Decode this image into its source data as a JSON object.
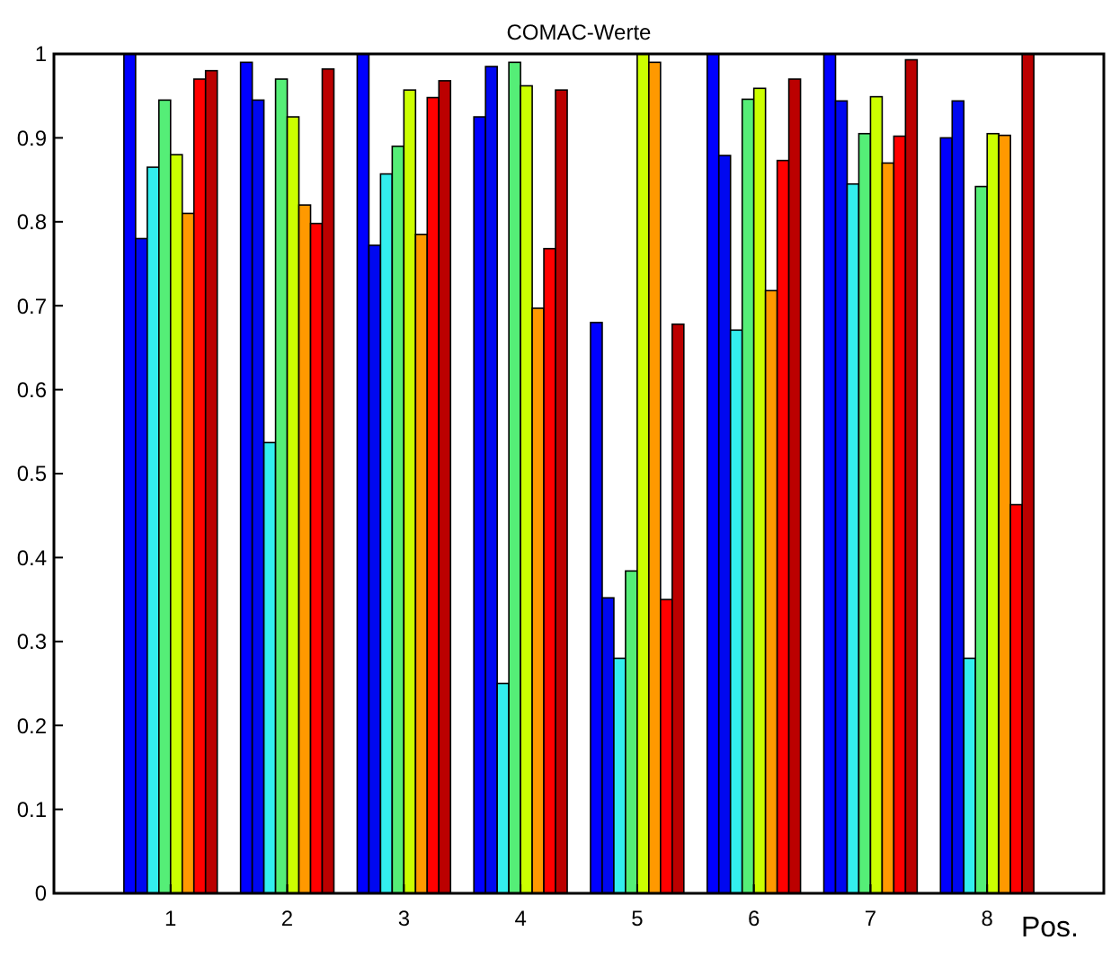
{
  "chart_data": {
    "type": "bar",
    "title": "COMAC-Werte",
    "xlabel": "Pos.",
    "categories": [
      "1",
      "2",
      "3",
      "4",
      "5",
      "6",
      "7",
      "8"
    ],
    "ylim": [
      0,
      1
    ],
    "yticks": [
      0,
      {
        "value": 0.1,
        "label": "0.1"
      },
      {
        "value": 0.2,
        "label": "0.2"
      },
      {
        "value": 0.3,
        "label": "0.3"
      },
      {
        "value": 0.4,
        "label": "0.4"
      },
      {
        "value": 0.5,
        "label": "0.5"
      },
      {
        "value": 0.6,
        "label": "0.6"
      },
      {
        "value": 0.7,
        "label": "0.7"
      },
      {
        "value": 0.8,
        "label": "0.8"
      },
      {
        "value": 0.9,
        "label": "0.9"
      },
      1
    ],
    "grid": false,
    "series": [
      {
        "color": "#0000ff",
        "values": [
          1.0,
          0.99,
          1.0,
          0.925,
          0.68,
          1.0,
          1.0,
          0.9
        ]
      },
      {
        "color": "#0008f0",
        "values": [
          0.78,
          0.945,
          0.772,
          0.985,
          0.352,
          0.879,
          0.944,
          0.944
        ]
      },
      {
        "color": "#33eeee",
        "values": [
          0.865,
          0.537,
          0.857,
          0.25,
          0.28,
          0.671,
          0.845,
          0.28
        ]
      },
      {
        "color": "#55ee77",
        "values": [
          0.945,
          0.97,
          0.89,
          0.99,
          0.384,
          0.946,
          0.905,
          0.842
        ]
      },
      {
        "color": "#ccff00",
        "values": [
          0.88,
          0.925,
          0.957,
          0.962,
          1.0,
          0.959,
          0.949,
          0.905
        ]
      },
      {
        "color": "#ff9900",
        "values": [
          0.81,
          0.82,
          0.785,
          0.697,
          0.99,
          0.718,
          0.87,
          0.903
        ]
      },
      {
        "color": "#ff0000",
        "values": [
          0.97,
          0.798,
          0.948,
          0.768,
          0.35,
          0.873,
          0.902,
          0.463
        ]
      },
      {
        "color": "#bb0000",
        "values": [
          0.98,
          0.982,
          0.968,
          0.957,
          0.678,
          0.97,
          0.993,
          1.0
        ]
      }
    ]
  }
}
